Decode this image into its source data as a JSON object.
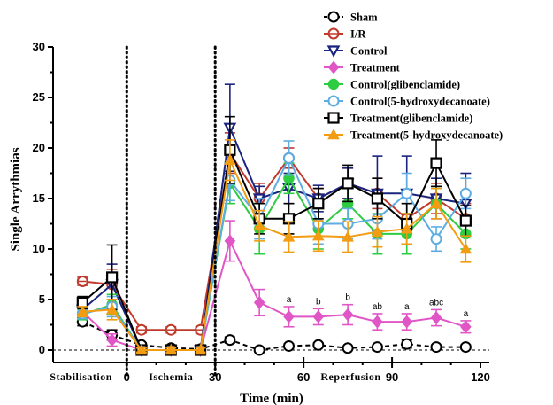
{
  "chart_data": {
    "type": "line",
    "ylabel": "Single Arrythmias",
    "xlabel": "Time (min)",
    "ylim": [
      0,
      30
    ],
    "xlim": [
      -25,
      123
    ],
    "x_ticks": [
      0,
      30,
      60,
      90,
      120
    ],
    "y_ticks": [
      0,
      5,
      10,
      15,
      20,
      25,
      30
    ],
    "phase_labels": [
      {
        "label": "Stabilisation",
        "x": -15.5
      },
      {
        "label": "Ischemia",
        "x": 15
      },
      {
        "label": "Reperfusion",
        "x": 76
      }
    ],
    "phase_boundaries": [
      0,
      30
    ],
    "reperfusion_ticks": [
      60,
      90
    ],
    "baseline": 0,
    "legend_position": "top-right",
    "x": [
      -15,
      -5,
      5,
      15,
      25,
      35,
      45,
      55,
      65,
      75,
      85,
      95,
      105,
      115
    ],
    "annotations": [
      {
        "x": 55,
        "text": "a"
      },
      {
        "x": 65,
        "text": "b"
      },
      {
        "x": 75,
        "text": "b"
      },
      {
        "x": 85,
        "text": "ab"
      },
      {
        "x": 95,
        "text": "a"
      },
      {
        "x": 105,
        "text": "abc"
      },
      {
        "x": 115,
        "text": "a"
      }
    ],
    "series": [
      {
        "name": "Sham",
        "color": "#000000",
        "marker": "circle-open",
        "dash": "dashed",
        "values": [
          2.8,
          1.5,
          0.5,
          0.2,
          0.1,
          1.0,
          0.0,
          0.4,
          0.5,
          0.2,
          0.3,
          0.6,
          0.3,
          0.3
        ],
        "err": [
          0.4,
          0.5,
          0.2,
          0.1,
          0.1,
          0.3,
          0.1,
          0.2,
          0.2,
          0.1,
          0.2,
          0.4,
          0.2,
          0.2
        ]
      },
      {
        "name": "I/R",
        "color": "#c0392b",
        "marker": "circle-cross",
        "values": [
          6.8,
          6.5,
          2.0,
          2.0,
          2.0,
          19.5,
          15.0,
          19.0,
          15.0,
          16.5,
          15.5,
          13.0,
          15.0,
          13.0
        ],
        "err": [
          0.4,
          1.5,
          0.3,
          0.3,
          0.3,
          2.0,
          1.5,
          1.0,
          1.0,
          1.5,
          1.5,
          1.5,
          1.5,
          1.5
        ]
      },
      {
        "name": "Control",
        "color": "#1a237e",
        "marker": "triangle-down",
        "values": [
          4.0,
          6.5,
          0.0,
          0.0,
          0.0,
          22.0,
          15.0,
          16.0,
          15.0,
          16.5,
          15.5,
          15.5,
          15.0,
          14.5
        ],
        "err": [
          0.5,
          2.0,
          0.2,
          0.2,
          0.2,
          4.3,
          1.2,
          1.5,
          1.3,
          1.5,
          3.7,
          3.7,
          2.0,
          3.0
        ]
      },
      {
        "name": "Treatment",
        "color": "#e056c6",
        "marker": "diamond",
        "values": [
          3.8,
          1.0,
          0.0,
          0.0,
          0.0,
          10.8,
          4.7,
          3.3,
          3.3,
          3.5,
          2.8,
          2.8,
          3.2,
          2.3
        ],
        "err": [
          0.5,
          0.6,
          0.2,
          0.2,
          0.2,
          2.0,
          1.3,
          1.0,
          0.8,
          1.0,
          0.8,
          0.8,
          0.8,
          0.6
        ]
      },
      {
        "name": "Control(glibenclamide)",
        "color": "#2ecc40",
        "marker": "circle",
        "values": [
          3.5,
          4.5,
          0.0,
          0.0,
          0.0,
          16.5,
          12.0,
          17.0,
          12.0,
          14.5,
          11.5,
          11.5,
          14.5,
          11.5
        ],
        "err": [
          0.5,
          1.0,
          0.2,
          0.2,
          0.2,
          2.0,
          2.5,
          1.5,
          2.0,
          1.5,
          2.0,
          2.0,
          1.5,
          1.5
        ]
      },
      {
        "name": "Control(5-hydroxydecanoate)",
        "color": "#5dade2",
        "marker": "circle-open",
        "values": [
          3.6,
          4.3,
          0.0,
          0.0,
          0.0,
          16.8,
          13.0,
          19.0,
          12.5,
          12.5,
          13.0,
          15.5,
          11.0,
          15.5
        ],
        "err": [
          0.5,
          1.0,
          0.2,
          0.2,
          0.2,
          2.0,
          2.0,
          1.7,
          2.0,
          1.5,
          2.0,
          2.0,
          1.2,
          1.5
        ]
      },
      {
        "name": "Treatment(glibenclamide)",
        "color": "#000000",
        "marker": "square-open",
        "values": [
          4.7,
          7.2,
          0.0,
          0.0,
          0.0,
          19.8,
          13.0,
          13.0,
          14.5,
          16.5,
          15.0,
          12.5,
          18.5,
          12.8
        ],
        "err": [
          0.6,
          3.2,
          0.2,
          0.2,
          0.2,
          3.3,
          1.5,
          1.5,
          1.5,
          1.8,
          2.0,
          2.0,
          2.3,
          1.5
        ]
      },
      {
        "name": "Treatment(5-hydroxydecanoate)",
        "color": "#f39c12",
        "marker": "triangle-up",
        "values": [
          3.8,
          4.0,
          0.0,
          0.0,
          0.0,
          18.8,
          12.3,
          11.2,
          11.3,
          11.2,
          11.7,
          12.0,
          14.5,
          10.0
        ],
        "err": [
          0.5,
          1.0,
          0.2,
          0.2,
          0.2,
          2.0,
          1.5,
          1.5,
          1.5,
          1.5,
          1.5,
          1.5,
          1.5,
          1.3
        ]
      }
    ]
  }
}
